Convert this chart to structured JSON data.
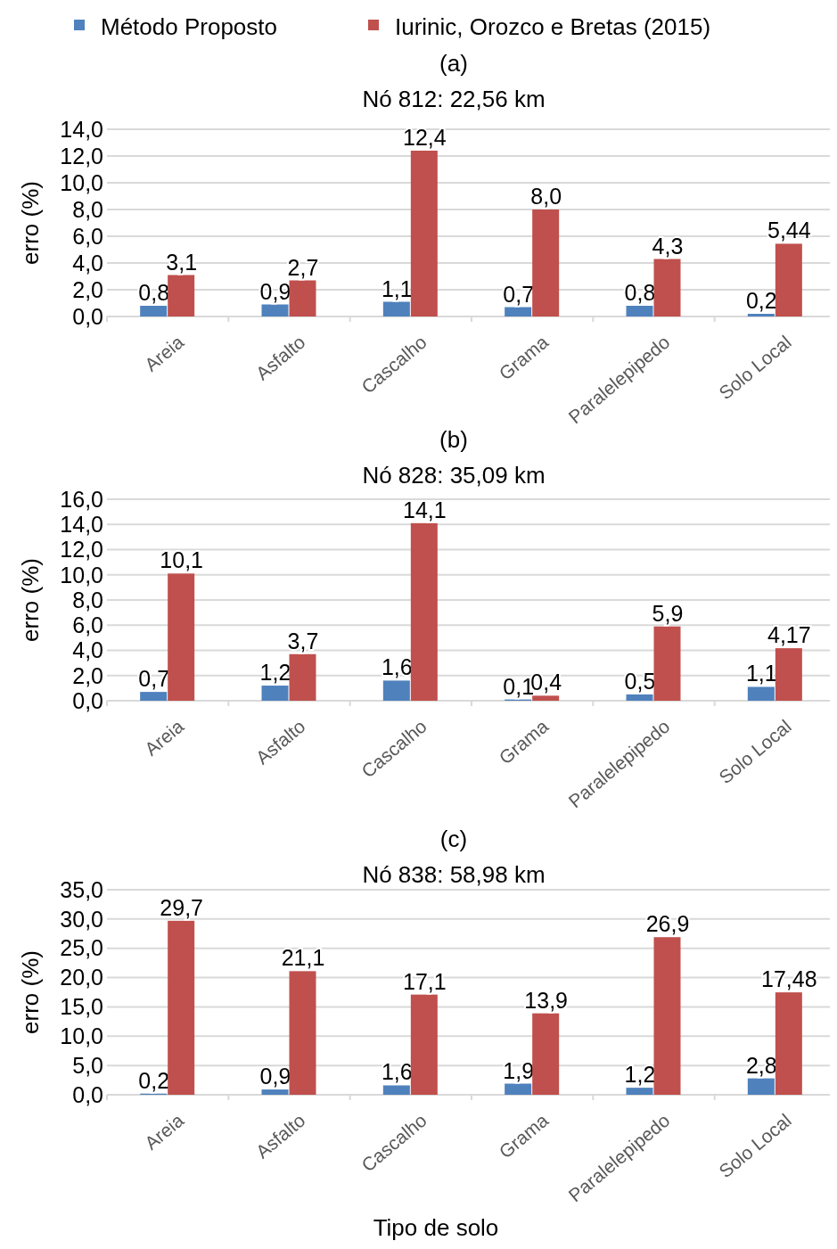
{
  "chart_data": [
    {
      "type": "bar",
      "title": "(a)",
      "subtitle": "Nó 812: 22,56 km",
      "ylabel": "erro (%)",
      "categories": [
        "Areia",
        "Asfalto",
        "Cascalho",
        "Grama",
        "Paralelepipedo",
        "Solo Local"
      ],
      "series": [
        {
          "name": "Método Proposto",
          "color": "#4f81bd",
          "values": [
            0.8,
            0.9,
            1.1,
            0.7,
            0.8,
            0.2
          ],
          "value_labels": [
            "0,8",
            "0,9",
            "1,1",
            "0,7",
            "0,8",
            "0,2"
          ]
        },
        {
          "name": "Iurinic, Orozco e Bretas (2015)",
          "color": "#c0504d",
          "values": [
            3.1,
            2.7,
            12.4,
            8.0,
            4.3,
            5.44
          ],
          "value_labels": [
            "3,1",
            "2,7",
            "12,4",
            "8,0",
            "4,3",
            "5,44"
          ]
        }
      ],
      "ylim": [
        0,
        14
      ],
      "yticks": [
        {
          "value": 0,
          "label": "0,0"
        },
        {
          "value": 2,
          "label": "2,0"
        },
        {
          "value": 4,
          "label": "4,0"
        },
        {
          "value": 6,
          "label": "6,0"
        },
        {
          "value": 8,
          "label": "8,0"
        },
        {
          "value": 10,
          "label": "10,0"
        },
        {
          "value": 12,
          "label": "12,0"
        },
        {
          "value": 14,
          "label": "14,0"
        }
      ],
      "grid": "y",
      "legend": "top"
    },
    {
      "type": "bar",
      "title": "(b)",
      "subtitle": "Nó 828: 35,09 km",
      "ylabel": "erro (%)",
      "categories": [
        "Areia",
        "Asfalto",
        "Cascalho",
        "Grama",
        "Paralelepipedo",
        "Solo Local"
      ],
      "series": [
        {
          "color": "#4f81bd",
          "values": [
            0.7,
            1.2,
            1.6,
            0.1,
            0.5,
            1.1
          ],
          "value_labels": [
            "0,7",
            "1,2",
            "1,6",
            "0,1",
            "0,5",
            "1,1"
          ]
        },
        {
          "color": "#c0504d",
          "values": [
            10.1,
            3.7,
            14.1,
            0.4,
            5.9,
            4.17
          ],
          "value_labels": [
            "10,1",
            "3,7",
            "14,1",
            "0,4",
            "5,9",
            "4,17"
          ]
        }
      ],
      "ylim": [
        0,
        16
      ],
      "yticks": [
        {
          "value": 0,
          "label": "0,0"
        },
        {
          "value": 2,
          "label": "2,0"
        },
        {
          "value": 4,
          "label": "4,0"
        },
        {
          "value": 6,
          "label": "6,0"
        },
        {
          "value": 8,
          "label": "8,0"
        },
        {
          "value": 10,
          "label": "10,0"
        },
        {
          "value": 12,
          "label": "12,0"
        },
        {
          "value": 14,
          "label": "14,0"
        },
        {
          "value": 16,
          "label": "16,0"
        }
      ],
      "grid": "y"
    },
    {
      "type": "bar",
      "title": "(c)",
      "subtitle": "Nó 838: 58,98 km",
      "ylabel": "erro (%)",
      "xlabel": "Tipo de solo",
      "categories": [
        "Areia",
        "Asfalto",
        "Cascalho",
        "Grama",
        "Paralelepipedo",
        "Solo Local"
      ],
      "series": [
        {
          "color": "#4f81bd",
          "values": [
            0.2,
            0.9,
            1.6,
            1.9,
            1.2,
            2.8
          ],
          "value_labels": [
            "0,2",
            "0,9",
            "1,6",
            "1,9",
            "1,2",
            "2,8"
          ]
        },
        {
          "color": "#c0504d",
          "values": [
            29.7,
            21.1,
            17.1,
            13.9,
            26.9,
            17.48
          ],
          "value_labels": [
            "29,7",
            "21,1",
            "17,1",
            "13,9",
            "26,9",
            "17,48"
          ]
        }
      ],
      "ylim": [
        0,
        35
      ],
      "yticks": [
        {
          "value": 0,
          "label": "0,0"
        },
        {
          "value": 5,
          "label": "5,0"
        },
        {
          "value": 10,
          "label": "10,0"
        },
        {
          "value": 15,
          "label": "15,0"
        },
        {
          "value": 20,
          "label": "20,0"
        },
        {
          "value": 25,
          "label": "25,0"
        },
        {
          "value": 30,
          "label": "30,0"
        },
        {
          "value": 35,
          "label": "35,0"
        }
      ],
      "grid": "y"
    }
  ]
}
